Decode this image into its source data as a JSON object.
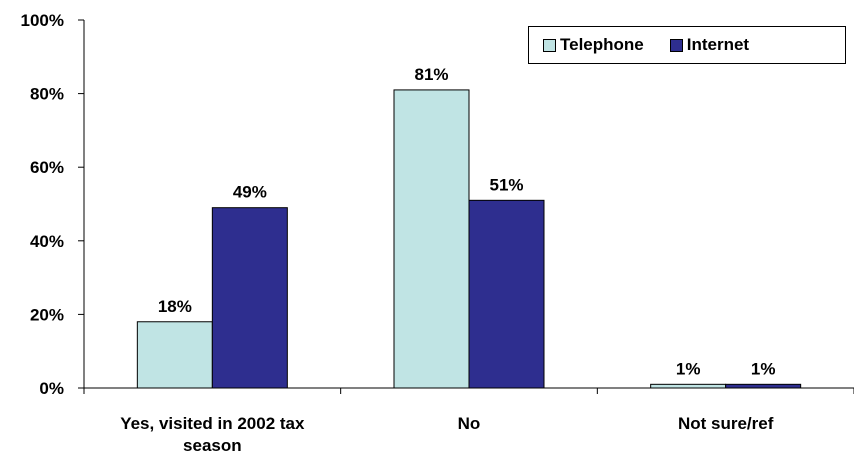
{
  "chart_data": {
    "type": "bar",
    "categories": [
      "Yes, visited in 2002 tax season",
      "No",
      "Not sure/ref"
    ],
    "category_lines": [
      [
        "Yes, visited in 2002 tax",
        "season"
      ],
      [
        "No"
      ],
      [
        "Not sure/ref"
      ]
    ],
    "series": [
      {
        "name": "Telephone",
        "values": [
          18,
          81,
          1
        ],
        "labels": [
          "18%",
          "81%",
          "1%"
        ],
        "color": "#c0e4e4"
      },
      {
        "name": "Internet",
        "values": [
          49,
          51,
          1
        ],
        "labels": [
          "49%",
          "51%",
          "1%"
        ],
        "color": "#2e2e8f"
      }
    ],
    "ylim": [
      0,
      100
    ],
    "yticks": [
      "0%",
      "20%",
      "40%",
      "60%",
      "80%",
      "100%"
    ],
    "ytick_values": [
      0,
      20,
      40,
      60,
      80,
      100
    ],
    "grid": false,
    "legend_position": "top-right"
  }
}
